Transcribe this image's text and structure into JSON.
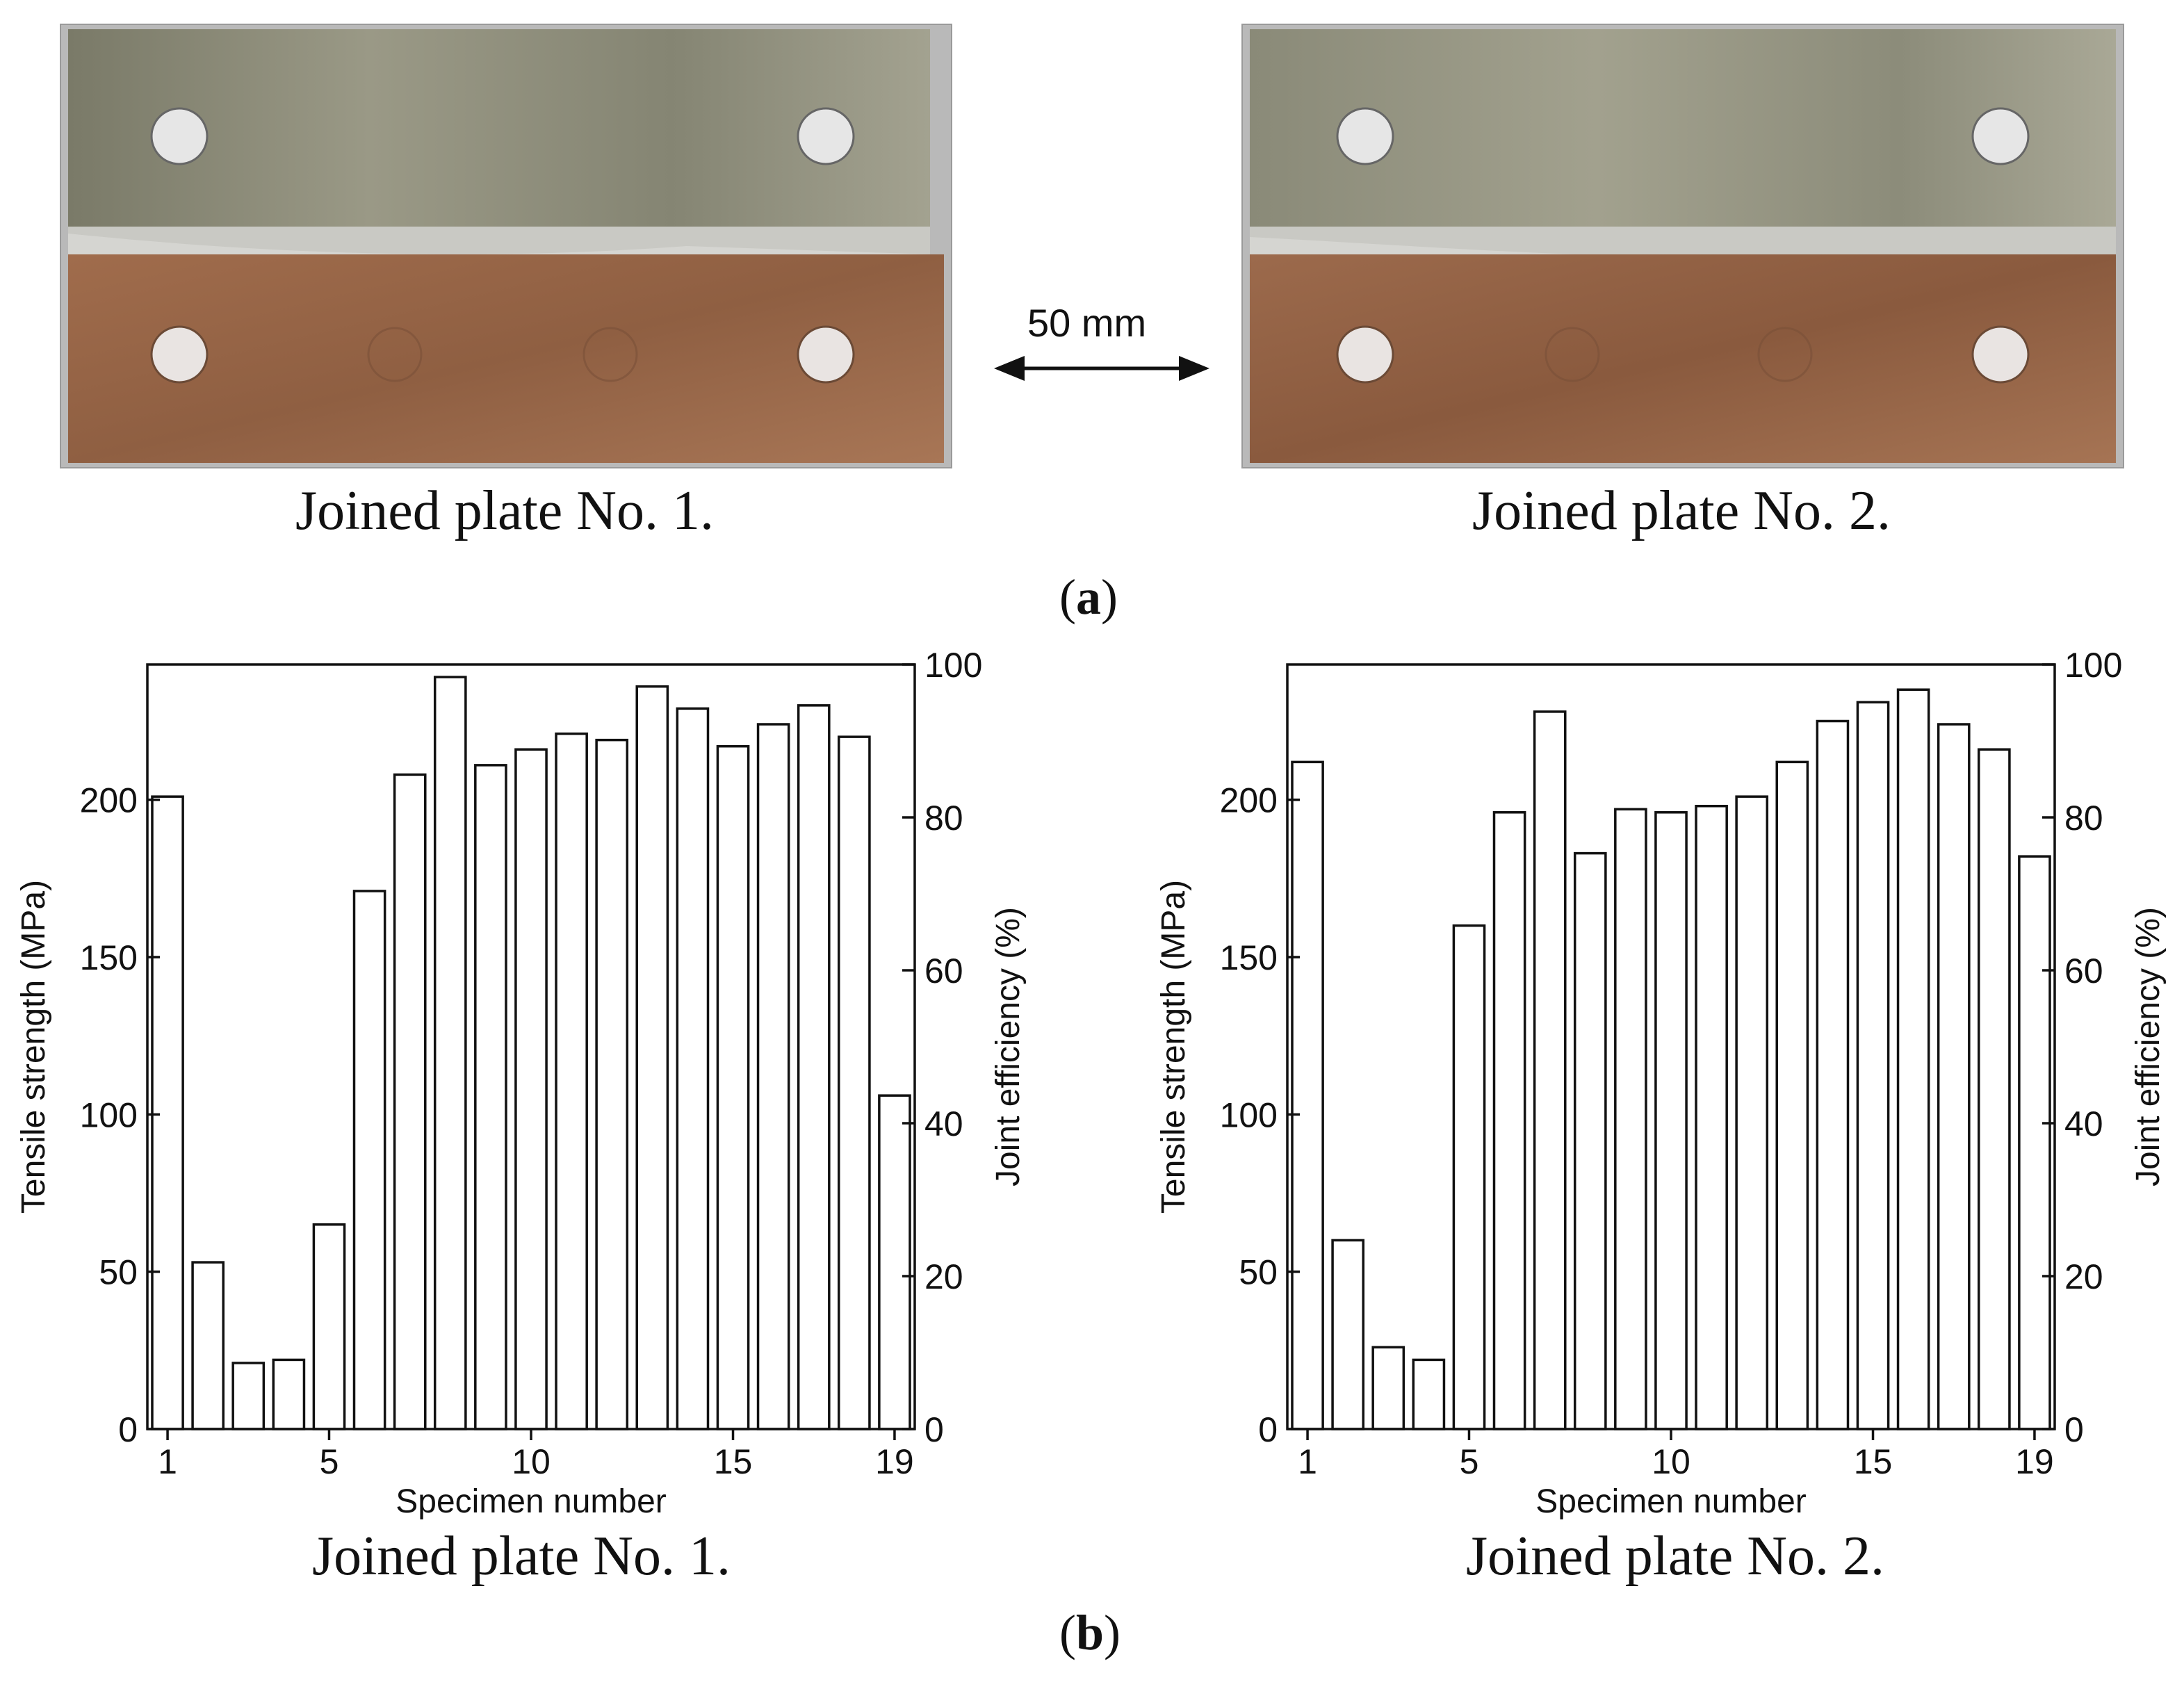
{
  "panel_a": {
    "label": "a",
    "scale_bar_label": "50 mm",
    "photos": [
      {
        "caption": "Joined plate No. 1."
      },
      {
        "caption": "Joined plate No. 2."
      }
    ]
  },
  "panel_b": {
    "label": "b",
    "captions": [
      "Joined plate No. 1.",
      "Joined plate No. 2."
    ]
  },
  "colors": {
    "aluminum": "#8a8a78",
    "copper": "#9c6a4c",
    "bar_fill": "#ffffff",
    "bar_stroke": "#111111"
  },
  "chart_data": [
    {
      "type": "bar",
      "categories": [
        1,
        2,
        3,
        4,
        5,
        6,
        7,
        8,
        9,
        10,
        11,
        12,
        13,
        14,
        15,
        16,
        17,
        18,
        19
      ],
      "values": [
        201,
        53,
        21,
        22,
        65,
        171,
        208,
        239,
        211,
        216,
        221,
        219,
        236,
        229,
        217,
        224,
        230,
        220,
        106
      ],
      "xlabel": "Specimen number",
      "ylabel": "Tensile strength (MPa)",
      "y2label": "Joint efficiency (%)",
      "xticks": [
        1,
        5,
        10,
        15,
        19
      ],
      "yticks": [
        0,
        50,
        100,
        150,
        200
      ],
      "y2ticks": [
        0,
        20,
        40,
        60,
        80,
        100
      ],
      "ylim": [
        0,
        243
      ],
      "y2lim": [
        0,
        100
      ]
    },
    {
      "type": "bar",
      "categories": [
        1,
        2,
        3,
        4,
        5,
        6,
        7,
        8,
        9,
        10,
        11,
        12,
        13,
        14,
        15,
        16,
        17,
        18,
        19
      ],
      "values": [
        212,
        60,
        26,
        22,
        160,
        196,
        228,
        183,
        197,
        196,
        198,
        201,
        212,
        225,
        231,
        235,
        224,
        216,
        182
      ],
      "xlabel": "Specimen number",
      "ylabel": "Tensile strength (MPa)",
      "y2label": "Joint efficiency (%)",
      "xticks": [
        1,
        5,
        10,
        15,
        19
      ],
      "yticks": [
        0,
        50,
        100,
        150,
        200
      ],
      "y2ticks": [
        0,
        20,
        40,
        60,
        80,
        100
      ],
      "ylim": [
        0,
        243
      ],
      "y2lim": [
        0,
        100
      ]
    }
  ]
}
